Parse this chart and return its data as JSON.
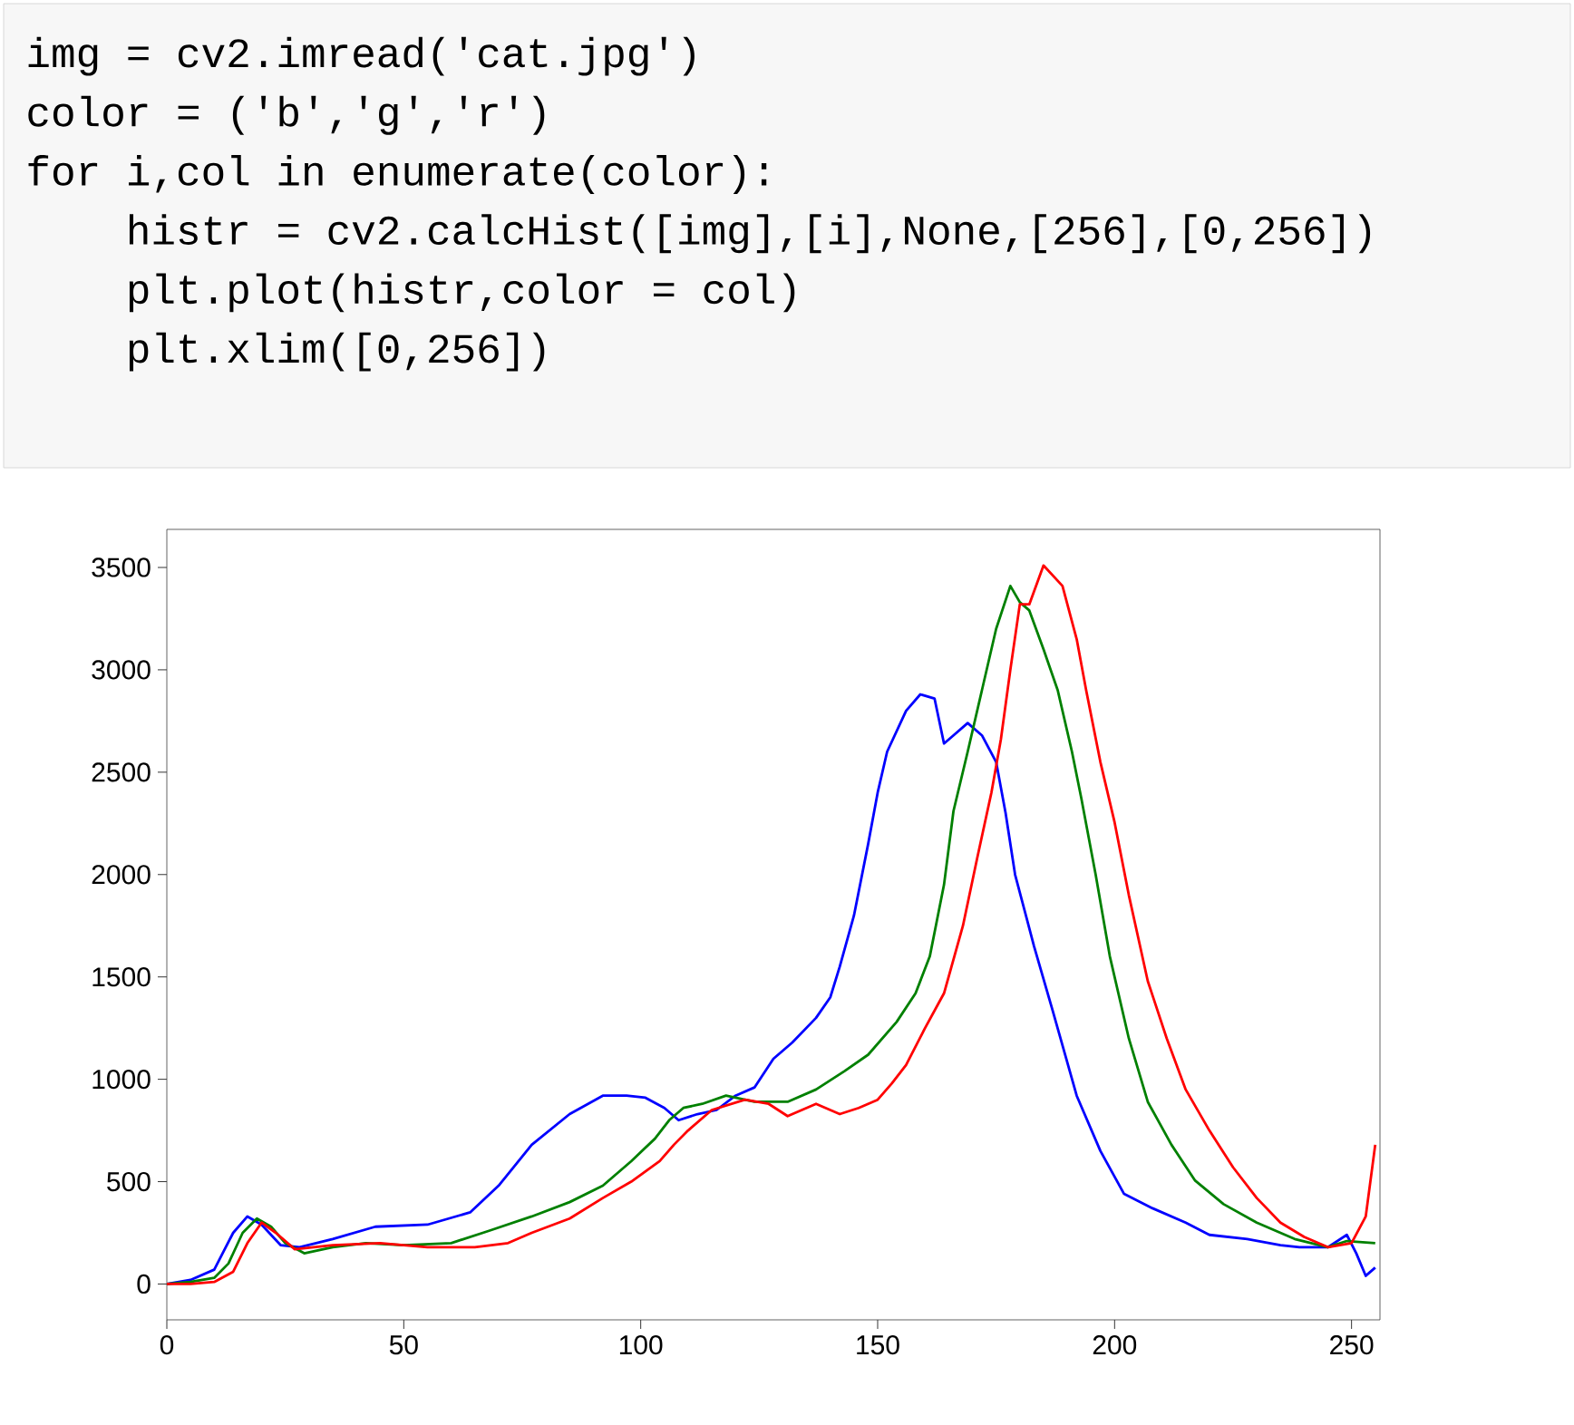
{
  "chart_data": {
    "type": "line",
    "annotations": [
      "img = cv2.imread('cat.jpg')",
      "color = ('b','g','r')",
      "for i,col in enumerate(color):",
      "    histr = cv2.calcHist([img],[i],None,[256],[0,256])",
      "    plt.plot(histr,color = col)",
      "    plt.xlim([0,256])"
    ],
    "xlim": [
      0,
      256
    ],
    "ylim": [
      -175,
      3686
    ],
    "xticks": [
      0,
      50,
      100,
      150,
      200,
      250
    ],
    "yticks": [
      0,
      500,
      1000,
      1500,
      2000,
      2500,
      3000,
      3500
    ],
    "grid": false,
    "series": [
      {
        "color": "#0000ff",
        "x": [
          0,
          5,
          10,
          14,
          17,
          20,
          24,
          28,
          35,
          44,
          55,
          64,
          70,
          77,
          85,
          92,
          97,
          101,
          105,
          108,
          112,
          116,
          120,
          124,
          128,
          132,
          137,
          140,
          142,
          145,
          148,
          150,
          152,
          156,
          159,
          162,
          164,
          166,
          169,
          172,
          175,
          177,
          179,
          183,
          187,
          192,
          197,
          202,
          208,
          215,
          220,
          228,
          235,
          239,
          245,
          249,
          251,
          253,
          255
        ],
        "values": [
          0,
          20,
          70,
          250,
          330,
          290,
          190,
          180,
          220,
          280,
          290,
          350,
          480,
          680,
          830,
          920,
          920,
          910,
          860,
          800,
          830,
          850,
          920,
          960,
          1100,
          1180,
          1300,
          1400,
          1550,
          1800,
          2150,
          2400,
          2600,
          2800,
          2880,
          2860,
          2640,
          2680,
          2740,
          2680,
          2550,
          2300,
          2000,
          1650,
          1330,
          920,
          650,
          440,
          370,
          300,
          240,
          220,
          190,
          180,
          180,
          240,
          150,
          40,
          80
        ]
      },
      {
        "color": "#008000",
        "x": [
          0,
          5,
          10,
          13,
          16,
          19,
          22,
          25,
          29,
          35,
          42,
          50,
          60,
          68,
          77,
          85,
          92,
          98,
          103,
          106,
          109,
          113,
          118,
          124,
          131,
          137,
          143,
          148,
          154,
          158,
          161,
          164,
          166,
          169,
          172,
          175,
          178,
          180,
          182,
          185,
          188,
          191,
          193,
          196,
          199,
          203,
          207,
          212,
          217,
          223,
          230,
          238,
          245,
          249,
          255
        ],
        "values": [
          0,
          10,
          30,
          100,
          250,
          320,
          280,
          200,
          150,
          180,
          200,
          190,
          200,
          260,
          330,
          400,
          480,
          600,
          710,
          800,
          860,
          880,
          920,
          890,
          890,
          950,
          1040,
          1120,
          1280,
          1420,
          1600,
          1950,
          2310,
          2600,
          2900,
          3200,
          3410,
          3330,
          3290,
          3100,
          2900,
          2600,
          2370,
          2000,
          1600,
          1200,
          890,
          680,
          505,
          390,
          300,
          220,
          180,
          210,
          200
        ]
      },
      {
        "color": "#ff0000",
        "x": [
          0,
          5,
          10,
          14,
          17,
          20,
          23,
          27,
          35,
          45,
          55,
          65,
          72,
          77,
          85,
          92,
          98,
          104,
          107,
          110,
          115,
          122,
          127,
          131,
          137,
          142,
          146,
          150,
          153,
          156,
          160,
          164,
          168,
          171,
          174,
          176,
          178,
          180,
          182,
          185,
          187,
          189,
          192,
          194,
          197,
          200,
          203,
          207,
          211,
          215,
          220,
          225,
          230,
          235,
          240,
          245,
          250,
          253,
          255
        ],
        "values": [
          0,
          0,
          10,
          60,
          200,
          300,
          250,
          170,
          190,
          200,
          180,
          180,
          200,
          250,
          320,
          420,
          500,
          600,
          680,
          750,
          850,
          900,
          880,
          820,
          880,
          830,
          860,
          900,
          980,
          1070,
          1250,
          1420,
          1750,
          2080,
          2400,
          2660,
          3000,
          3320,
          3320,
          3510,
          3460,
          3410,
          3150,
          2900,
          2550,
          2255,
          1900,
          1480,
          1200,
          950,
          750,
          570,
          420,
          300,
          230,
          180,
          200,
          330,
          680
        ]
      }
    ]
  }
}
